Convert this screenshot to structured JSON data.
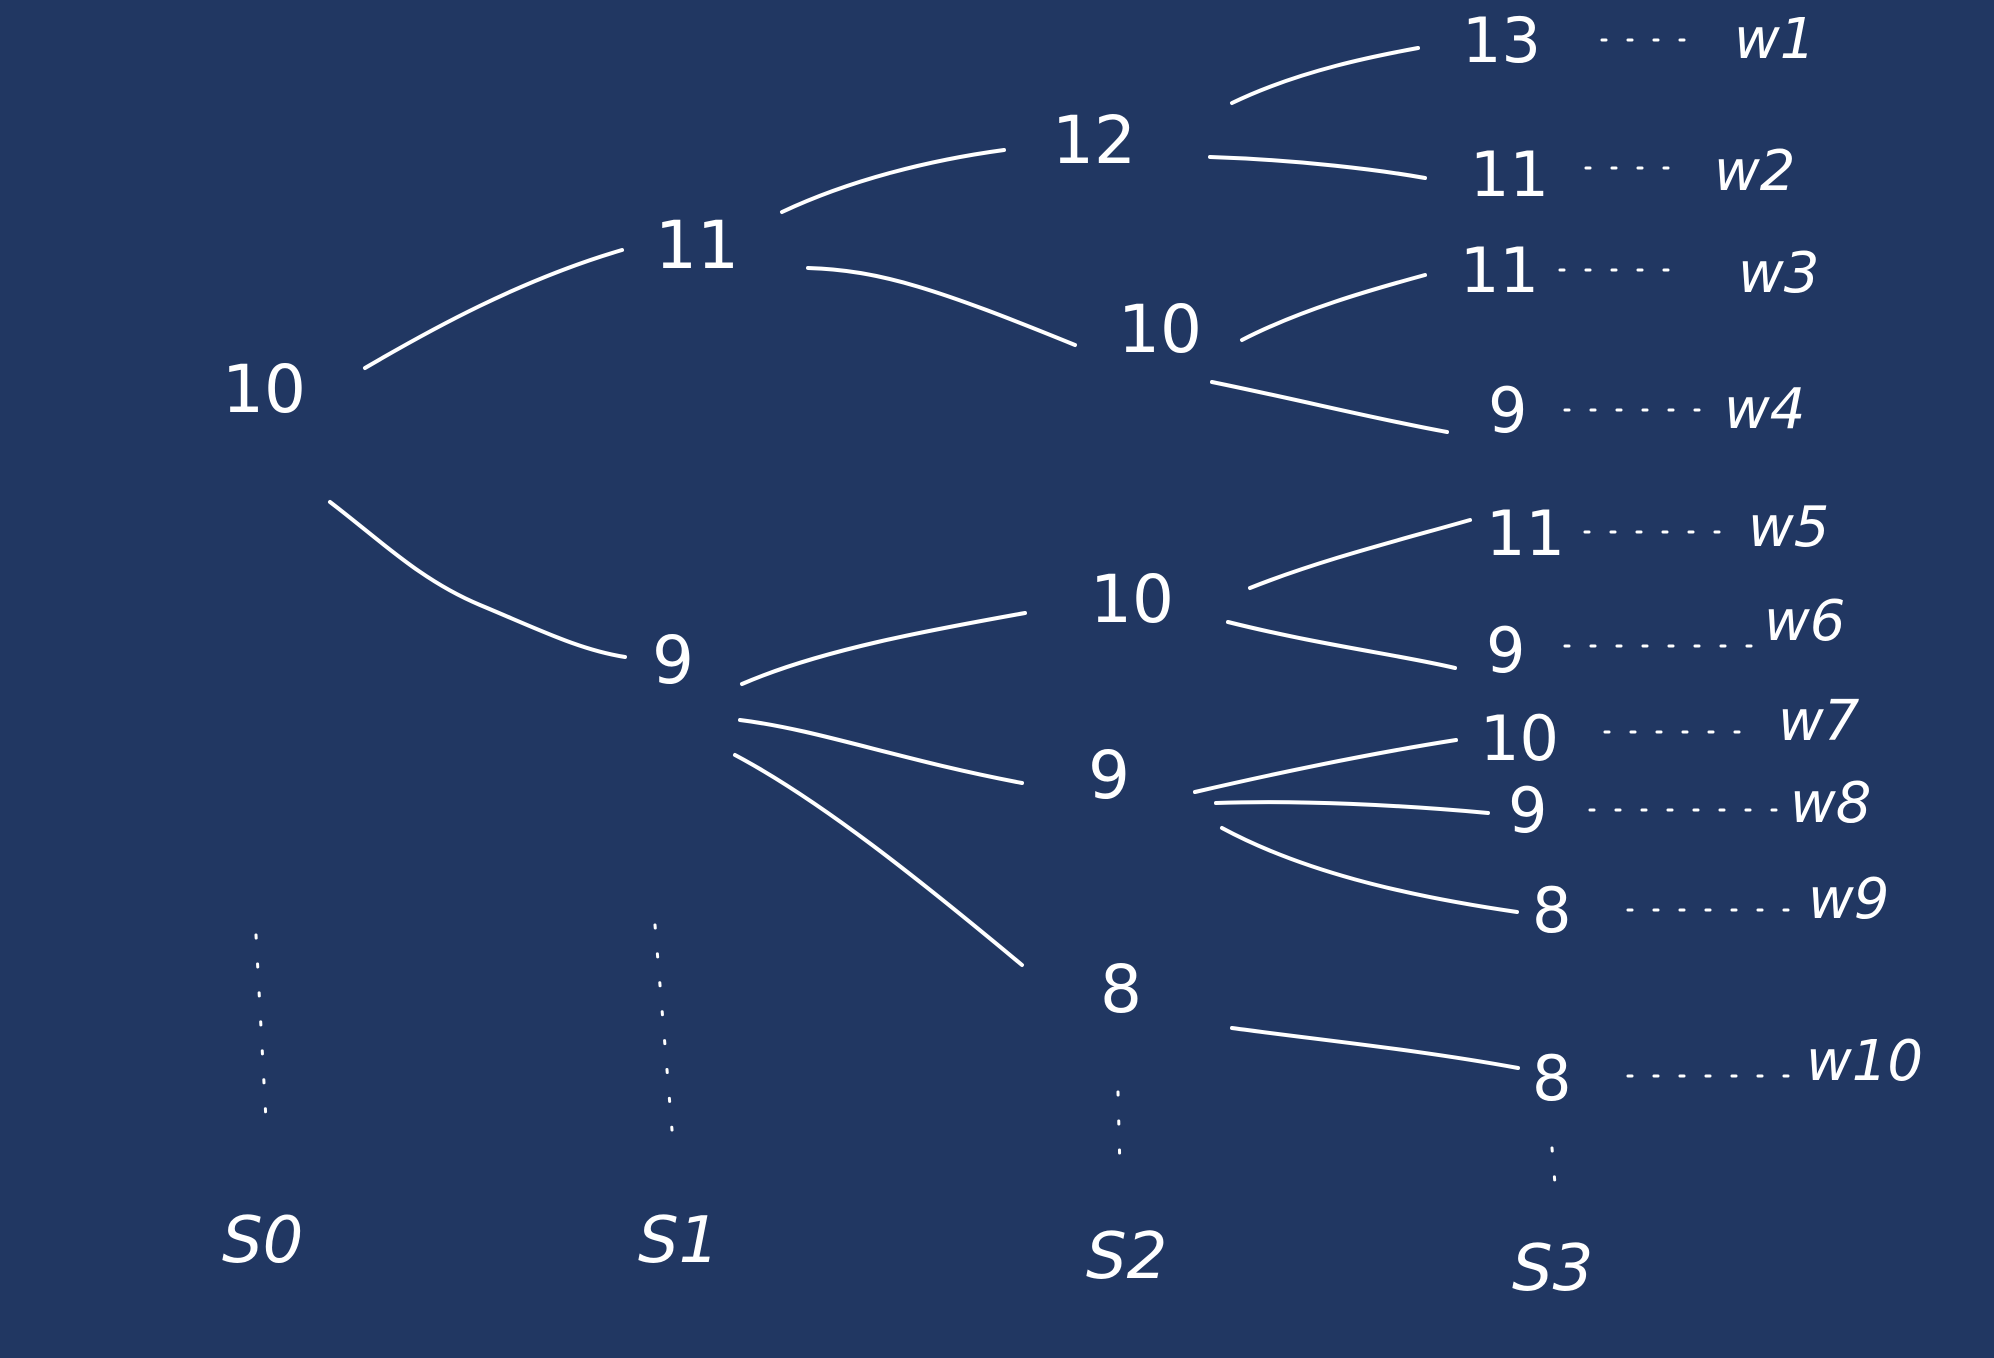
{
  "tree": {
    "root": "10",
    "level1": {
      "up": "11",
      "down": "9"
    },
    "level2": {
      "a": "12",
      "b": "10",
      "c": "10",
      "d": "9",
      "e": "8"
    },
    "leaves": [
      "13",
      "11",
      "11",
      "9",
      "11",
      "9",
      "10",
      "9",
      "8",
      "8"
    ],
    "outcomes": [
      "w1",
      "w2",
      "w3",
      "w4",
      "w5",
      "w6",
      "w7",
      "w8",
      "w9",
      "w10"
    ]
  },
  "time_labels": [
    "S0",
    "S1",
    "S2",
    "S3"
  ]
}
